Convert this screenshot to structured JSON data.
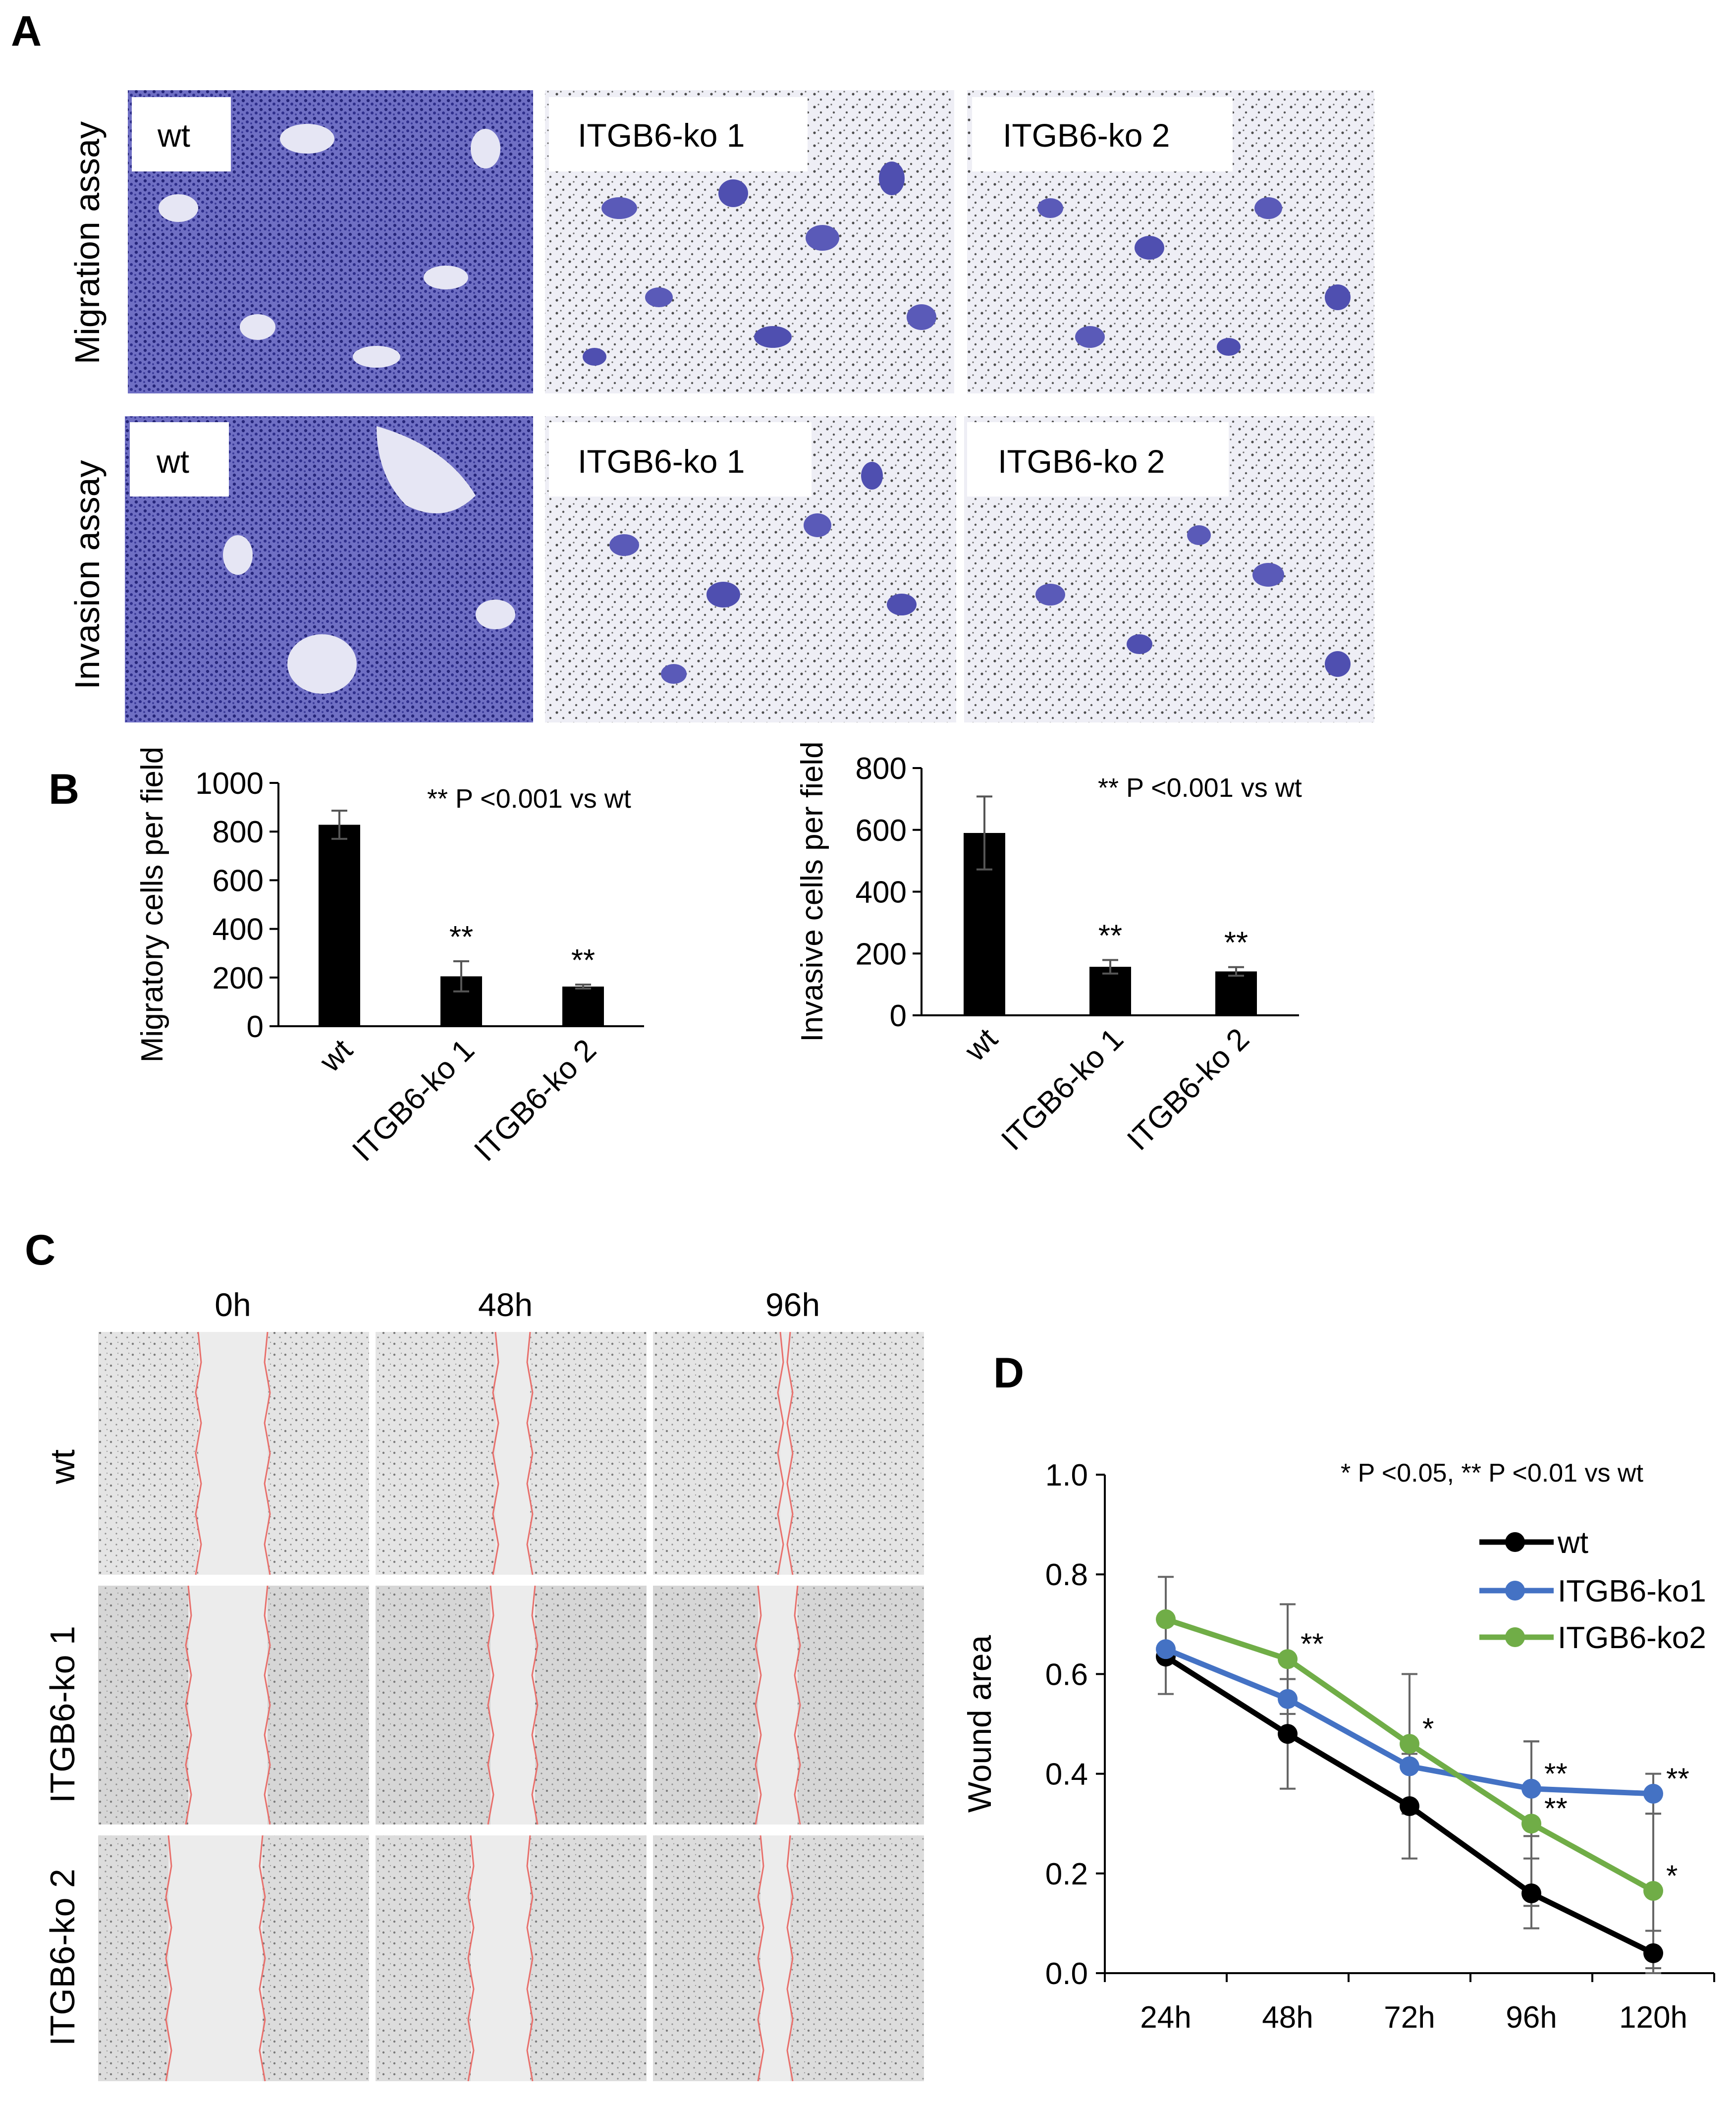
{
  "panels": {
    "a": "A",
    "b": "B",
    "c": "C",
    "d": "D"
  },
  "panel_a": {
    "rows": [
      "Migration assay",
      "Invasion assay"
    ],
    "labels": [
      [
        "wt",
        "ITGB6-ko 1",
        "ITGB6-ko 2"
      ],
      [
        "wt",
        "ITGB6-ko 1",
        "ITGB6-ko 2"
      ]
    ]
  },
  "panel_c": {
    "times": [
      "0h",
      "48h",
      "96h"
    ],
    "rows": [
      "wt",
      "ITGB6-ko 1",
      "ITGB6-ko 2"
    ]
  },
  "colors": {
    "bar": "#000000",
    "wt": "#000000",
    "ko1": "#4472C4",
    "ko2": "#70AD47",
    "stain": "#3a3aa8",
    "wound_edge": "#e8706c"
  },
  "chart_data": [
    {
      "type": "bar",
      "panel": "B-left",
      "categories": [
        "wt",
        "ITGB6-ko 1",
        "ITGB6-ko 2"
      ],
      "values": [
        828,
        205,
        163
      ],
      "errors": [
        58,
        62,
        8
      ],
      "significance": [
        "",
        "**",
        "**"
      ],
      "ylabel": "Migratory cells per field",
      "ylim": [
        0,
        1000
      ],
      "yticks": [
        0,
        200,
        400,
        600,
        800,
        1000
      ],
      "annotation": "** P <0.001 vs wt",
      "grid": false
    },
    {
      "type": "bar",
      "panel": "B-right",
      "categories": [
        "wt",
        "ITGB6-ko 1",
        "ITGB6-ko 2"
      ],
      "values": [
        590,
        157,
        142
      ],
      "errors": [
        118,
        22,
        14
      ],
      "significance": [
        "",
        "**",
        "**"
      ],
      "ylabel": "Invasive cells per field",
      "ylim": [
        0,
        800
      ],
      "yticks": [
        0,
        200,
        400,
        600,
        800
      ],
      "annotation": "** P <0.001 vs wt",
      "grid": false
    },
    {
      "type": "line",
      "panel": "D",
      "x": [
        "24h",
        "48h",
        "72h",
        "96h",
        "120h"
      ],
      "ylabel": "Wound area",
      "ylim": [
        0,
        1.0
      ],
      "yticks": [
        "0.0",
        "0.2",
        "0.4",
        "0.6",
        "0.8",
        "1.0"
      ],
      "annotation": "* P <0.05, ** P <0.01 vs wt",
      "legend_position": "top-right",
      "grid": false,
      "series": [
        {
          "name": "wt",
          "values": [
            0.635,
            0.48,
            0.335,
            0.16,
            0.04
          ],
          "errors": [
            0.075,
            0.11,
            0.105,
            0.07,
            0.045
          ],
          "marks": [
            "",
            "",
            "",
            "",
            ""
          ]
        },
        {
          "name": "ITGB6-ko1",
          "values": [
            0.65,
            0.55,
            0.415,
            0.37,
            0.36
          ],
          "errors": [
            0,
            0,
            0,
            0.095,
            0.04
          ],
          "marks": [
            "",
            "",
            "",
            "**",
            "**"
          ]
        },
        {
          "name": "ITGB6-ko2",
          "values": [
            0.71,
            0.63,
            0.46,
            0.3,
            0.165
          ],
          "errors": [
            0.085,
            0.11,
            0.14,
            0.165,
            0.155
          ],
          "marks": [
            "",
            "**",
            "*",
            "**",
            "*"
          ]
        }
      ]
    }
  ]
}
